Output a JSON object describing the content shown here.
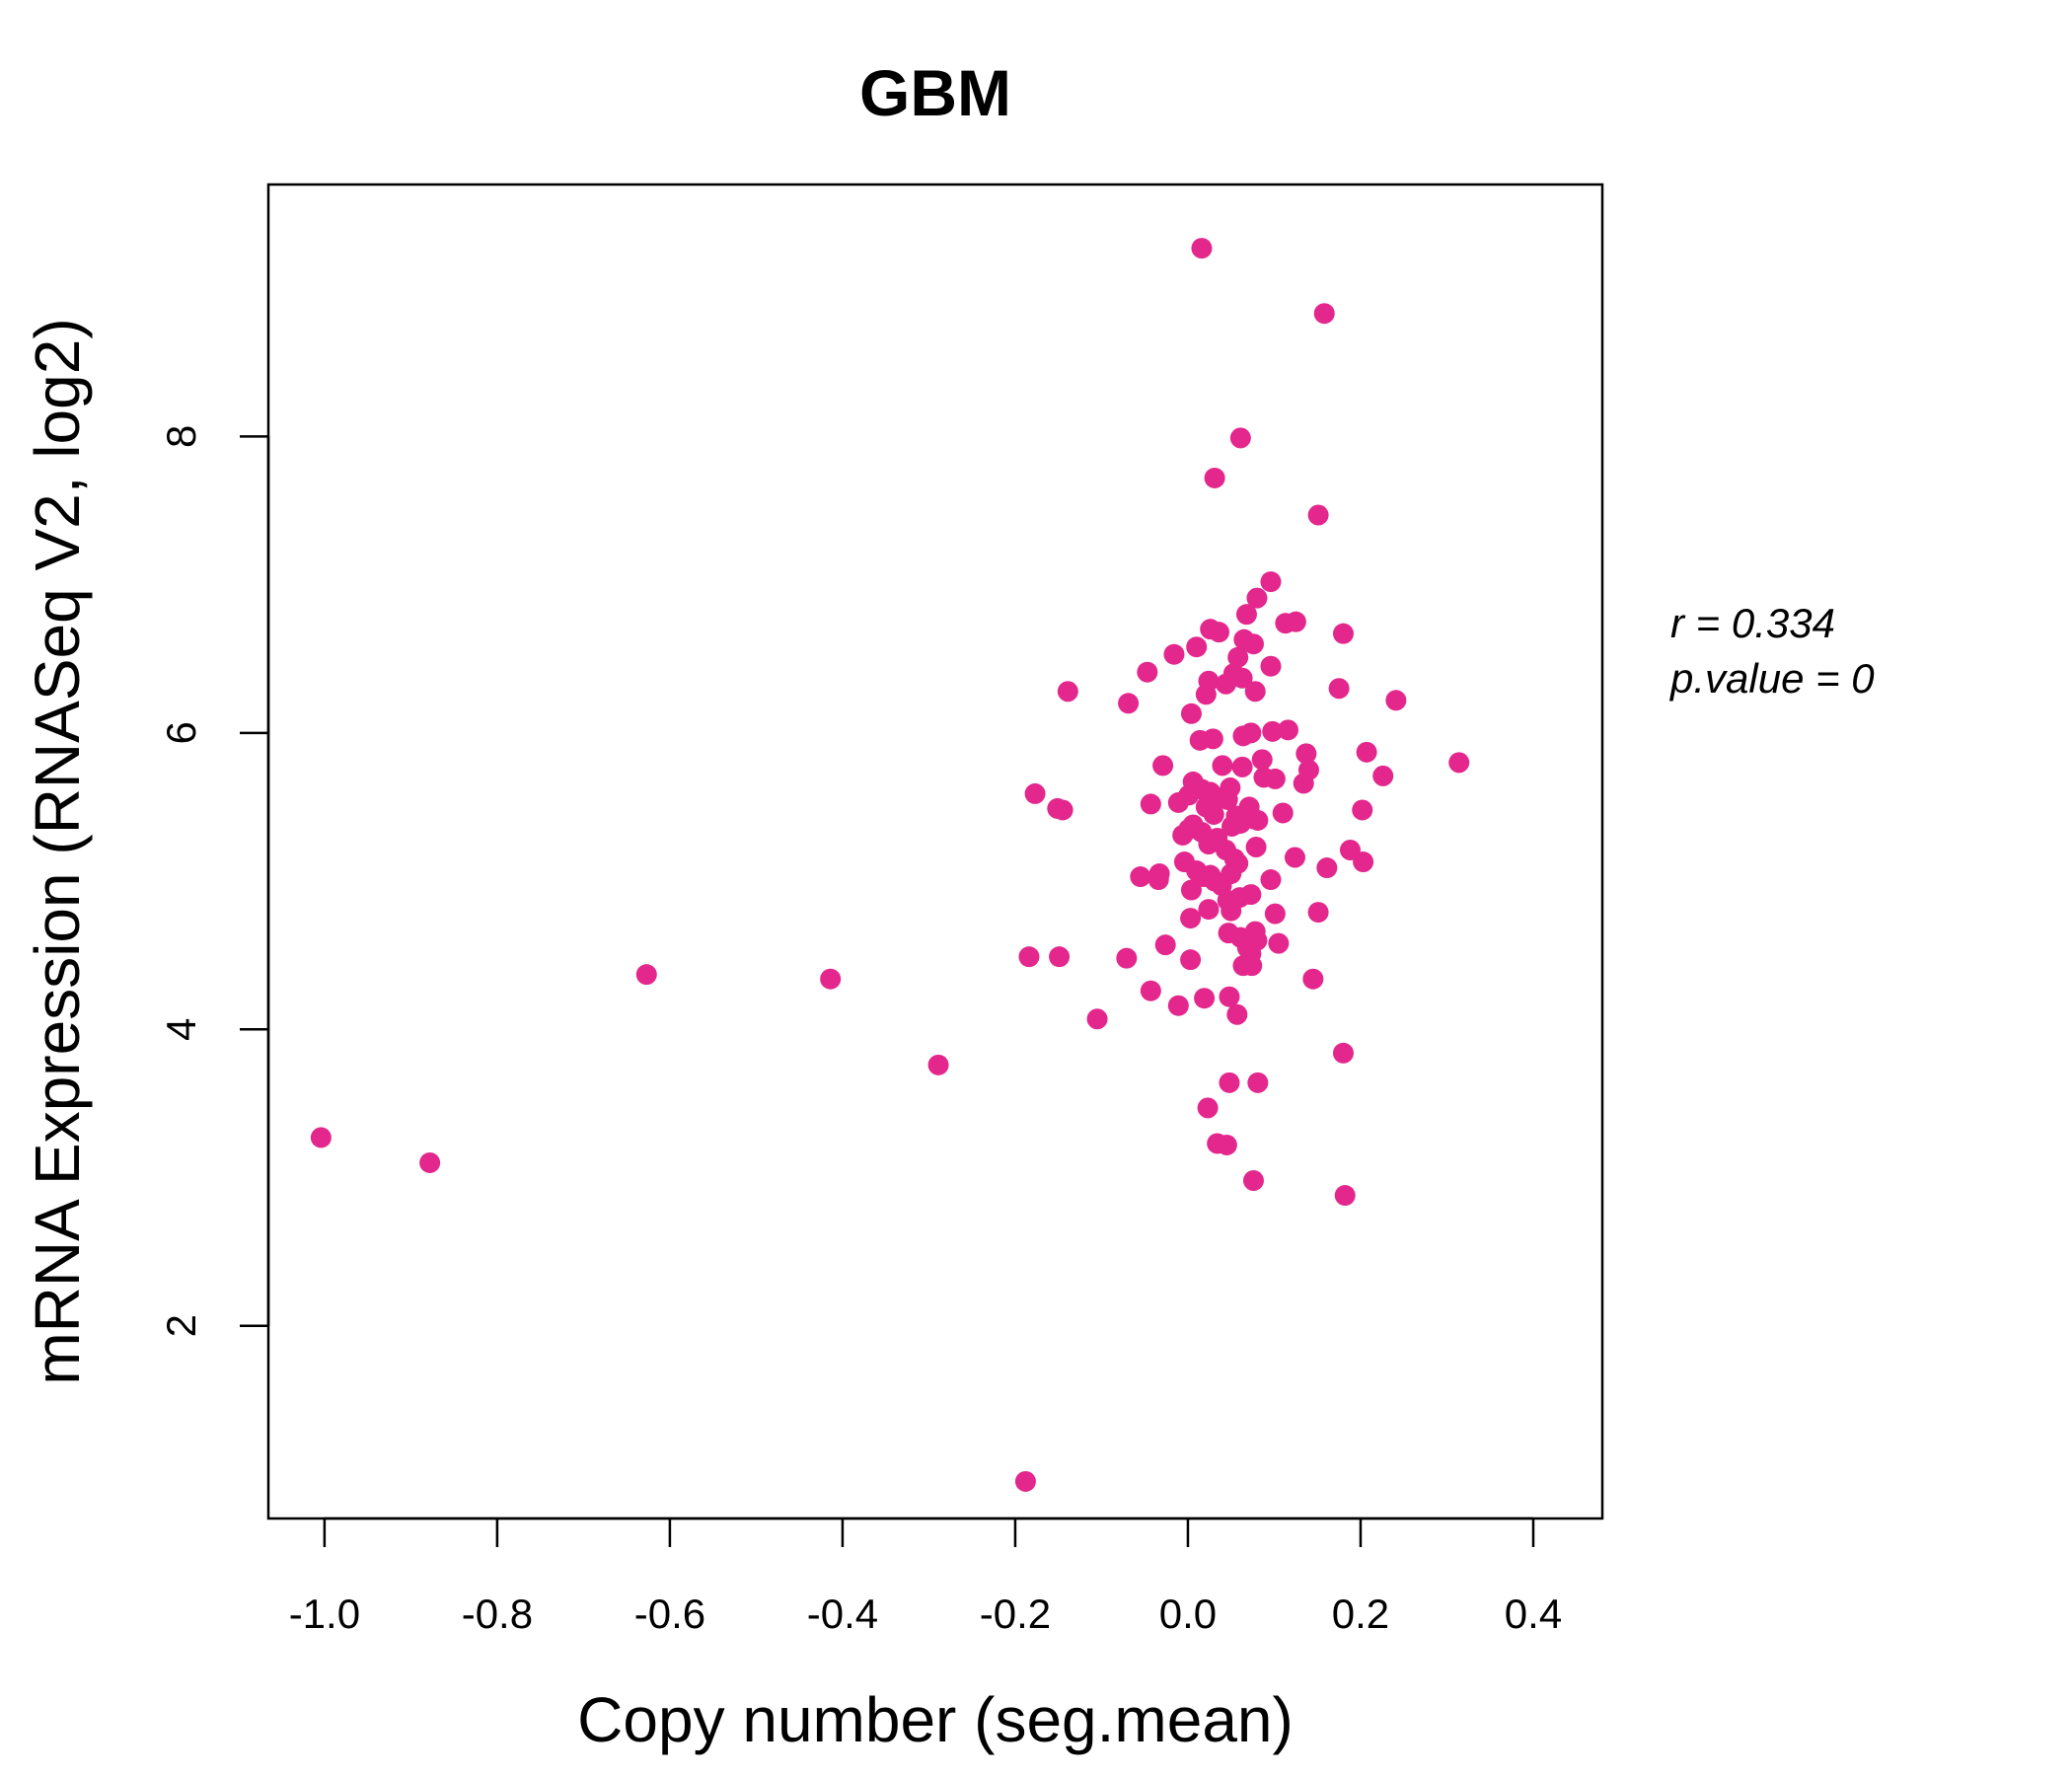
{
  "chart_data": {
    "type": "scatter",
    "title": "GBM",
    "xlabel": "Copy number (seg.mean)",
    "ylabel": "mRNA Expression (RNASeq V2, log2)",
    "xlim": [
      -1.065,
      0.48
    ],
    "ylim": [
      0.7,
      9.7
    ],
    "xticks": [
      -1.0,
      -0.8,
      -0.6,
      -0.4,
      -0.2,
      0.0,
      0.2,
      0.4
    ],
    "xtick_labels": [
      "-1.0",
      "-0.8",
      "-0.6",
      "-0.4",
      "-0.2",
      "0.0",
      "0.2",
      "0.4"
    ],
    "yticks": [
      2,
      4,
      6,
      8
    ],
    "ytick_labels": [
      "2",
      "4",
      "6",
      "8"
    ],
    "grid": false,
    "point_color": "#E3278C",
    "title_color": "#E3278C",
    "stats": {
      "r_text": "r = 0.334",
      "p_text": "p.value = 0"
    },
    "points": [
      [
        0.016,
        9.27
      ],
      [
        0.158,
        8.83
      ],
      [
        0.061,
        7.99
      ],
      [
        0.031,
        7.72
      ],
      [
        0.151,
        7.47
      ],
      [
        0.096,
        7.02
      ],
      [
        0.08,
        6.91
      ],
      [
        0.068,
        6.8
      ],
      [
        0.125,
        6.75
      ],
      [
        0.113,
        6.74
      ],
      [
        0.026,
        6.7
      ],
      [
        0.036,
        6.68
      ],
      [
        0.18,
        6.67
      ],
      [
        0.065,
        6.63
      ],
      [
        0.076,
        6.6
      ],
      [
        0.01,
        6.58
      ],
      [
        -0.016,
        6.53
      ],
      [
        0.058,
        6.51
      ],
      [
        0.096,
        6.45
      ],
      [
        -0.047,
        6.41
      ],
      [
        0.053,
        6.4
      ],
      [
        0.063,
        6.37
      ],
      [
        0.024,
        6.35
      ],
      [
        0.044,
        6.33
      ],
      [
        0.175,
        6.3
      ],
      [
        -0.139,
        6.28
      ],
      [
        0.078,
        6.28
      ],
      [
        0.021,
        6.26
      ],
      [
        0.241,
        6.22
      ],
      [
        -0.069,
        6.2
      ],
      [
        0.004,
        6.13
      ],
      [
        0.116,
        6.02
      ],
      [
        0.098,
        6.01
      ],
      [
        0.073,
        6.0
      ],
      [
        0.064,
        5.98
      ],
      [
        0.029,
        5.96
      ],
      [
        0.014,
        5.95
      ],
      [
        0.207,
        5.87
      ],
      [
        0.137,
        5.86
      ],
      [
        0.314,
        5.8
      ],
      [
        0.086,
        5.82
      ],
      [
        -0.029,
        5.78
      ],
      [
        0.04,
        5.78
      ],
      [
        0.063,
        5.77
      ],
      [
        0.14,
        5.75
      ],
      [
        0.226,
        5.71
      ],
      [
        0.101,
        5.69
      ],
      [
        0.088,
        5.7
      ],
      [
        0.006,
        5.67
      ],
      [
        0.134,
        5.66
      ],
      [
        0.049,
        5.63
      ],
      [
        0.016,
        5.62
      ],
      [
        0.026,
        5.6
      ],
      [
        -0.177,
        5.59
      ],
      [
        0.001,
        5.58
      ],
      [
        0.036,
        5.56
      ],
      [
        0.046,
        5.55
      ],
      [
        -0.011,
        5.53
      ],
      [
        -0.043,
        5.52
      ],
      [
        0.071,
        5.5
      ],
      [
        0.021,
        5.5
      ],
      [
        -0.151,
        5.49
      ],
      [
        -0.145,
        5.48
      ],
      [
        0.202,
        5.48
      ],
      [
        0.11,
        5.46
      ],
      [
        0.03,
        5.45
      ],
      [
        0.056,
        5.44
      ],
      [
        0.076,
        5.42
      ],
      [
        0.081,
        5.41
      ],
      [
        0.061,
        5.39
      ],
      [
        0.006,
        5.38
      ],
      [
        0.051,
        5.37
      ],
      [
        0.001,
        5.35
      ],
      [
        0.016,
        5.33
      ],
      [
        -0.006,
        5.31
      ],
      [
        0.034,
        5.29
      ],
      [
        0.024,
        5.25
      ],
      [
        0.079,
        5.23
      ],
      [
        0.188,
        5.21
      ],
      [
        0.044,
        5.21
      ],
      [
        0.124,
        5.16
      ],
      [
        0.054,
        5.15
      ],
      [
        -0.004,
        5.13
      ],
      [
        0.203,
        5.13
      ],
      [
        0.058,
        5.12
      ],
      [
        0.161,
        5.09
      ],
      [
        0.01,
        5.07
      ],
      [
        0.05,
        5.05
      ],
      [
        -0.033,
        5.05
      ],
      [
        0.026,
        5.04
      ],
      [
        -0.055,
        5.03
      ],
      [
        0.018,
        5.03
      ],
      [
        -0.034,
        5.01
      ],
      [
        0.096,
        5.01
      ],
      [
        0.031,
        5.0
      ],
      [
        0.039,
        4.97
      ],
      [
        0.004,
        4.94
      ],
      [
        0.073,
        4.91
      ],
      [
        0.06,
        4.89
      ],
      [
        0.046,
        4.87
      ],
      [
        0.024,
        4.81
      ],
      [
        0.05,
        4.8
      ],
      [
        0.151,
        4.79
      ],
      [
        0.101,
        4.78
      ],
      [
        0.003,
        4.75
      ],
      [
        0.078,
        4.66
      ],
      [
        0.047,
        4.65
      ],
      [
        0.061,
        4.62
      ],
      [
        0.08,
        4.6
      ],
      [
        0.105,
        4.58
      ],
      [
        -0.026,
        4.57
      ],
      [
        0.069,
        4.55
      ],
      [
        0.073,
        4.51
      ],
      [
        -0.184,
        4.49
      ],
      [
        -0.149,
        4.49
      ],
      [
        -0.071,
        4.48
      ],
      [
        0.003,
        4.47
      ],
      [
        0.064,
        4.43
      ],
      [
        0.074,
        4.43
      ],
      [
        -0.627,
        4.37
      ],
      [
        -0.414,
        4.34
      ],
      [
        0.145,
        4.34
      ],
      [
        -0.043,
        4.26
      ],
      [
        0.048,
        4.22
      ],
      [
        0.019,
        4.21
      ],
      [
        -0.011,
        4.16
      ],
      [
        0.057,
        4.1
      ],
      [
        -0.105,
        4.07
      ],
      [
        0.18,
        3.84
      ],
      [
        -0.289,
        3.76
      ],
      [
        0.048,
        3.64
      ],
      [
        0.081,
        3.64
      ],
      [
        0.023,
        3.47
      ],
      [
        -1.004,
        3.27
      ],
      [
        0.034,
        3.23
      ],
      [
        0.045,
        3.22
      ],
      [
        -0.878,
        3.1
      ],
      [
        0.076,
        2.98
      ],
      [
        0.182,
        2.88
      ],
      [
        -0.188,
        0.95
      ]
    ]
  }
}
